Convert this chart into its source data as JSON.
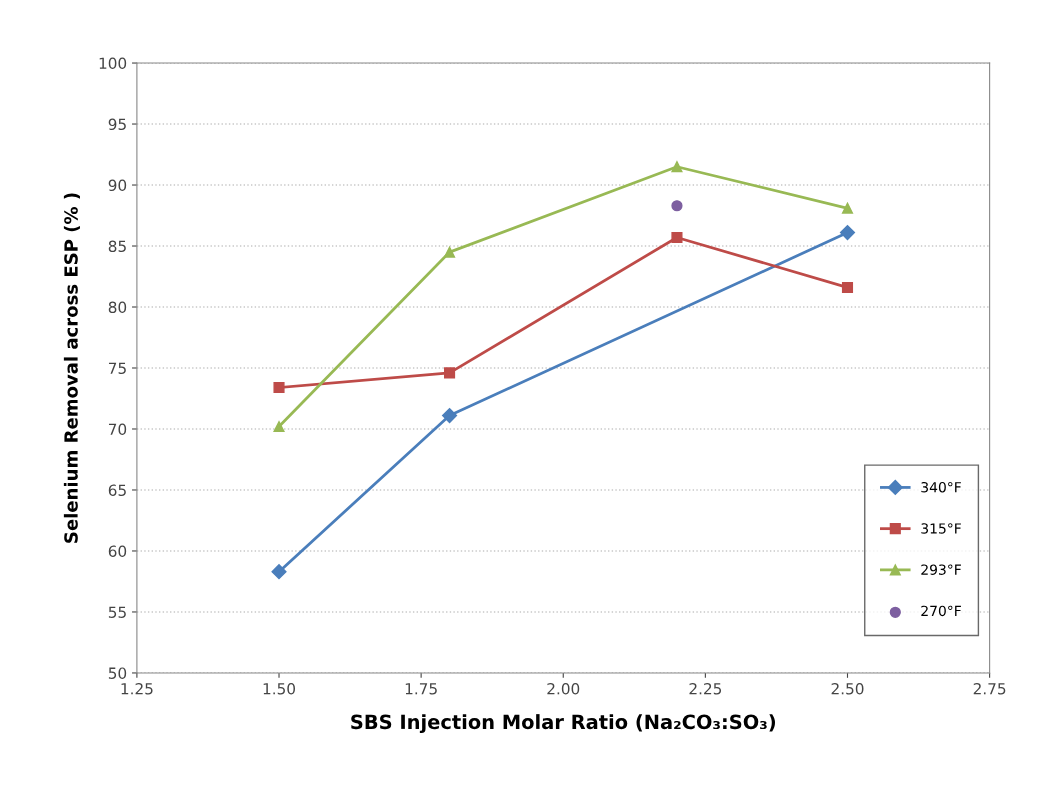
{
  "chart_data": {
    "type": "line",
    "xlabel": "SBS Injection Molar Ratio (Na₂CO₃:SO₃)",
    "ylabel": "Selenium Removal across ESP (% )",
    "xlim": [
      1.25,
      2.75
    ],
    "xticks": [
      1.25,
      {
        "value": 1.5,
        "label": "1.50"
      },
      1.75,
      {
        "value": 2.0,
        "label": "2.00"
      },
      2.25,
      {
        "value": 2.5,
        "label": "2.50"
      },
      2.75
    ],
    "ylim": [
      50,
      100
    ],
    "yticks": [
      50,
      55,
      60,
      65,
      70,
      75,
      80,
      85,
      90,
      95,
      100
    ],
    "grid": "y",
    "legend": "lower right",
    "series": [
      {
        "name": "340°F",
        "color": "#4a7ebb",
        "marker": "diamond",
        "x": [
          1.5,
          1.8,
          2.5
        ],
        "values": [
          58.3,
          71.1,
          86.1
        ]
      },
      {
        "name": "315°F",
        "color": "#be4b48",
        "marker": "square",
        "x": [
          1.5,
          1.8,
          2.2,
          2.5
        ],
        "values": [
          73.4,
          74.6,
          85.7,
          81.6
        ]
      },
      {
        "name": "293°F",
        "color": "#98b954",
        "marker": "triangle",
        "x": [
          1.5,
          1.8,
          2.2,
          2.5
        ],
        "values": [
          70.2,
          84.5,
          91.5,
          88.1
        ]
      },
      {
        "name": "270°F",
        "color": "#7d5fa0",
        "marker": "circle",
        "type": "scatter",
        "x": [
          2.2
        ],
        "values": [
          88.3
        ]
      }
    ]
  }
}
